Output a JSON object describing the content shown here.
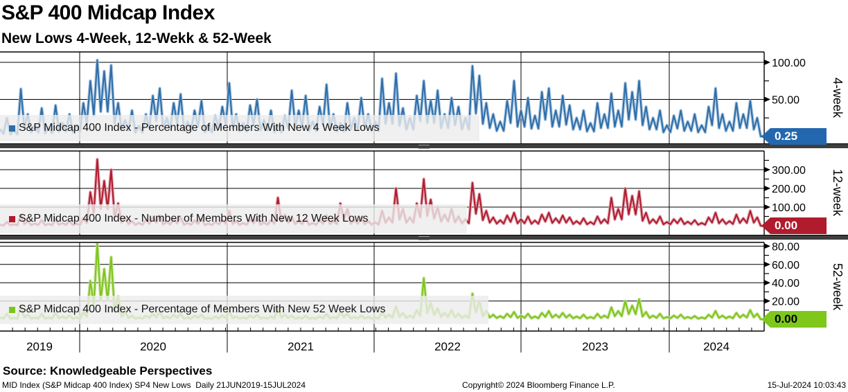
{
  "header": {
    "title": "S&P 400 Midcap Index",
    "subtitle": "New Lows 4-Week, 12-Wekk & 52-Week"
  },
  "x_axis": {
    "range": "21JUN2019-15JUL2024",
    "year_labels": [
      "2019",
      "2020",
      "2021",
      "2022",
      "2023",
      "2024"
    ]
  },
  "footer": {
    "source": "Source: Knowledgeable Perspectives",
    "left": "MID Index (S&P Midcap 400 Index) SP4 New Lows  Daily 21JUN2019-15JUL2024",
    "copyright": "Copyright© 2024 Bloomberg Finance L.P.",
    "timestamp": "15-Jul-2024 10:03:43"
  },
  "chart_data": [
    {
      "type": "line",
      "panel_label": "4-week",
      "legend": "S&P Midcap 400 Index - Percentage of Members With New 4 Week Lows",
      "color": "#2d6da8",
      "halo_color": "#a3c0dc",
      "tag": {
        "label": "0.25",
        "bg": "#2368ae",
        "fg": "#ffffff"
      },
      "ylim": [
        0,
        105
      ],
      "yticks": [
        {
          "v": 50,
          "label": "50.00"
        },
        {
          "v": 100,
          "label": "100.00"
        }
      ],
      "yticks_minor": [
        25,
        75
      ],
      "values": [
        10,
        25,
        8,
        64,
        30,
        15,
        38,
        12,
        42,
        18,
        30,
        15,
        45,
        75,
        103,
        88,
        96,
        45,
        22,
        35,
        14,
        30,
        55,
        65,
        25,
        45,
        57,
        20,
        35,
        48,
        15,
        28,
        40,
        72,
        30,
        18,
        42,
        50,
        22,
        35,
        15,
        28,
        62,
        35,
        55,
        20,
        40,
        70,
        30,
        18,
        45,
        25,
        52,
        30,
        20,
        78,
        45,
        85,
        38,
        25,
        55,
        75,
        48,
        62,
        30,
        52,
        40,
        25,
        95,
        82,
        45,
        30,
        20,
        48,
        75,
        35,
        52,
        28,
        60,
        65,
        35,
        55,
        42,
        25,
        35,
        18,
        45,
        30,
        58,
        35,
        72,
        60,
        75,
        40,
        25,
        35,
        15,
        28,
        35,
        20,
        30,
        15,
        40,
        65,
        30,
        20,
        45,
        30,
        48,
        25,
        0.25
      ]
    },
    {
      "type": "line",
      "panel_label": "12-week",
      "legend": "S&P Midcap 400 Index - Number of Members With New 12 Week Lows",
      "color": "#b01b2e",
      "halo_color": "#dc9faa",
      "tag": {
        "label": "0.00",
        "bg": "#b01b2e",
        "fg": "#ffffff"
      },
      "ylim": [
        0,
        400
      ],
      "yticks": [
        {
          "v": 100,
          "label": "100.00"
        },
        {
          "v": 200,
          "label": "200.00"
        },
        {
          "v": 300,
          "label": "300.00"
        }
      ],
      "yticks_minor": [
        50,
        150,
        250,
        350
      ],
      "values": [
        5,
        20,
        8,
        60,
        25,
        12,
        30,
        10,
        35,
        15,
        25,
        12,
        40,
        180,
        355,
        240,
        300,
        120,
        45,
        25,
        15,
        30,
        45,
        55,
        20,
        35,
        45,
        15,
        28,
        38,
        12,
        22,
        30,
        80,
        25,
        15,
        35,
        45,
        18,
        30,
        150,
        60,
        45,
        25,
        40,
        15,
        30,
        55,
        25,
        120,
        90,
        30,
        45,
        25,
        18,
        80,
        45,
        200,
        90,
        45,
        120,
        250,
        140,
        100,
        60,
        90,
        50,
        35,
        230,
        170,
        80,
        45,
        30,
        55,
        70,
        35,
        50,
        28,
        60,
        70,
        40,
        55,
        45,
        25,
        40,
        20,
        50,
        35,
        150,
        90,
        200,
        160,
        185,
        70,
        35,
        50,
        20,
        35,
        40,
        22,
        30,
        15,
        45,
        70,
        35,
        25,
        60,
        40,
        80,
        45,
        0
      ]
    },
    {
      "type": "line",
      "panel_label": "52-week",
      "legend": "S&P Midcap 400 Index - Percentage of Members With New 52 Week Lows",
      "color": "#7dc41d",
      "halo_color": "#c3e291",
      "tag": {
        "label": "0.00",
        "bg": "#7ec81c",
        "fg": "#000000"
      },
      "ylim": [
        0,
        85
      ],
      "yticks": [
        {
          "v": 20,
          "label": "20.00"
        },
        {
          "v": 40,
          "label": "40.00"
        },
        {
          "v": 60,
          "label": "60.00"
        },
        {
          "v": 80,
          "label": "80.00"
        }
      ],
      "yticks_minor": [
        10,
        30,
        50,
        70
      ],
      "values": [
        2,
        6,
        1.5,
        15,
        5,
        2,
        6,
        2,
        7,
        3,
        4,
        2,
        8,
        42,
        85,
        55,
        68,
        25,
        8,
        4,
        2,
        4,
        6,
        8,
        3,
        5,
        6,
        2,
        4,
        5,
        1.5,
        3,
        4,
        9,
        3,
        2,
        4,
        5,
        2,
        3,
        12,
        5,
        4,
        2,
        4,
        1.5,
        3,
        6,
        2.5,
        8,
        6,
        2.5,
        4,
        2.5,
        2,
        8,
        5,
        14,
        7,
        4,
        10,
        45,
        18,
        12,
        7,
        10,
        6,
        4,
        28,
        20,
        9,
        5,
        3.5,
        6,
        8,
        4,
        6,
        3,
        7,
        9,
        5,
        7,
        5,
        3,
        5,
        2.5,
        6,
        4,
        13,
        9,
        20,
        15,
        22,
        8,
        4,
        6,
        2.5,
        4,
        5,
        2.5,
        3.5,
        2,
        5,
        9,
        4,
        3,
        7,
        5,
        10,
        6,
        0
      ]
    }
  ]
}
